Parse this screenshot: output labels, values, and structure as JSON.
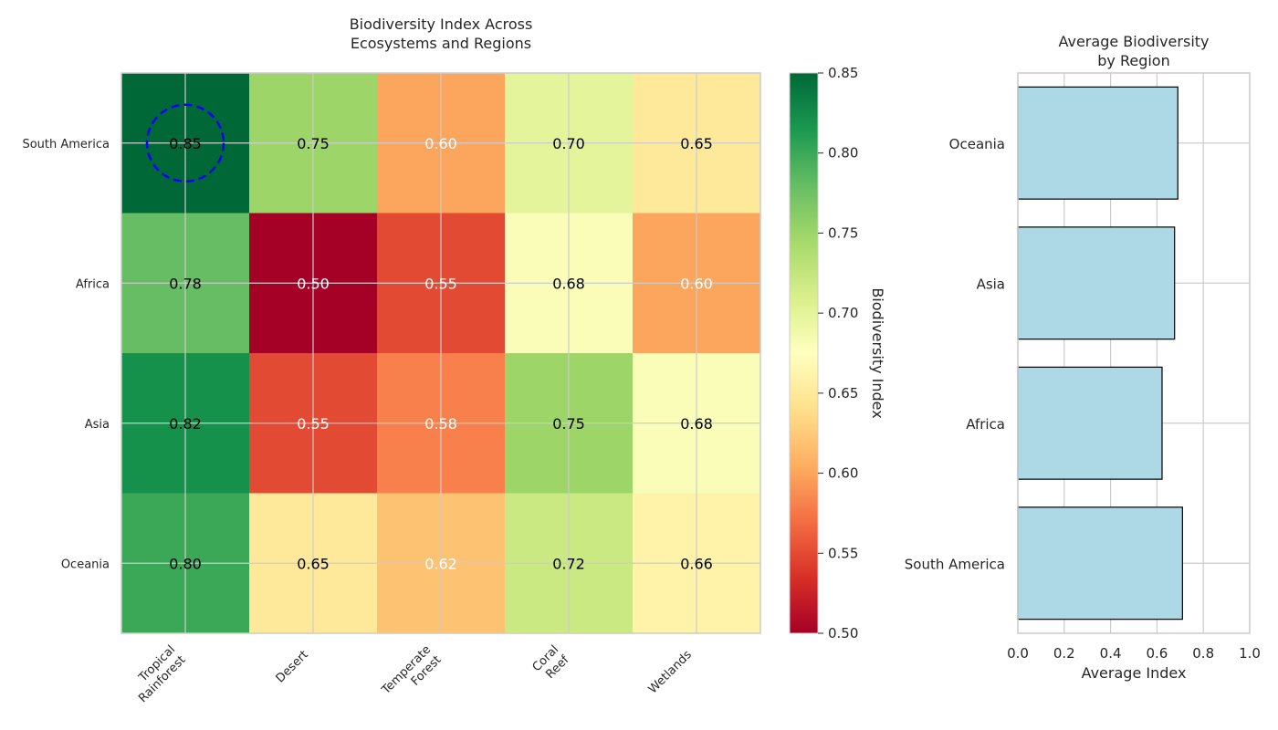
{
  "chart_data": [
    {
      "type": "heatmap",
      "title_lines": [
        "Biodiversity Index Across",
        "Ecosystems and Regions"
      ],
      "columns": [
        {
          "lines": [
            "Tropical",
            "Rainforest"
          ]
        },
        {
          "lines": [
            "Desert"
          ]
        },
        {
          "lines": [
            "Temperate",
            "Forest"
          ]
        },
        {
          "lines": [
            "Coral",
            "Reef"
          ]
        },
        {
          "lines": [
            "Wetlands"
          ]
        }
      ],
      "rows": [
        "South America",
        "Africa",
        "Asia",
        "Oceania"
      ],
      "values": [
        [
          0.85,
          0.75,
          0.6,
          0.7,
          0.65
        ],
        [
          0.78,
          0.5,
          0.55,
          0.68,
          0.6
        ],
        [
          0.82,
          0.55,
          0.58,
          0.75,
          0.68
        ],
        [
          0.8,
          0.65,
          0.62,
          0.72,
          0.66
        ]
      ],
      "value_labels": [
        [
          "0.85",
          "0.75",
          "0.60",
          "0.70",
          "0.65"
        ],
        [
          "0.78",
          "0.50",
          "0.55",
          "0.68",
          "0.60"
        ],
        [
          "0.82",
          "0.55",
          "0.58",
          "0.75",
          "0.68"
        ],
        [
          "0.80",
          "0.65",
          "0.62",
          "0.72",
          "0.66"
        ]
      ],
      "light_label_cells": [
        [
          0,
          2
        ],
        [
          1,
          1
        ],
        [
          1,
          2
        ],
        [
          1,
          4
        ],
        [
          2,
          1
        ],
        [
          2,
          2
        ],
        [
          3,
          2
        ]
      ],
      "highlight": {
        "row": 0,
        "col": 0,
        "style": "dashed circle",
        "color": "#0000ff"
      },
      "colormap": "RdYlGn",
      "colorbar": {
        "label": "Biodiversity Index",
        "range": [
          0.5,
          0.85
        ],
        "ticks": [
          "0.50",
          "0.55",
          "0.60",
          "0.65",
          "0.70",
          "0.75",
          "0.80",
          "0.85"
        ]
      },
      "grid": true
    },
    {
      "type": "bar",
      "orientation": "horizontal",
      "title_lines": [
        "Average Biodiversity",
        "by Region"
      ],
      "categories": [
        "South America",
        "Africa",
        "Asia",
        "Oceania"
      ],
      "values": [
        0.71,
        0.622,
        0.676,
        0.69
      ],
      "xlabel": "Average Index",
      "xlim": [
        0,
        1.0
      ],
      "xticks": [
        "0.0",
        "0.2",
        "0.4",
        "0.6",
        "0.8",
        "1.0"
      ],
      "bar_color": "#add8e6",
      "edge_color": "#000000",
      "grid": true
    }
  ]
}
